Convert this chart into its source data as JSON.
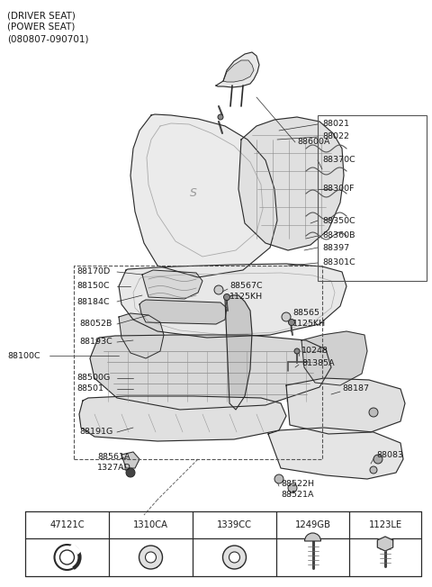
{
  "bg_color": "#ffffff",
  "line_color": "#2a2a2a",
  "title_lines": [
    "(DRIVER SEAT)",
    "(POWER SEAT)",
    "(080807-090701)"
  ],
  "table_labels": [
    "47121C",
    "1310CA",
    "1339CC",
    "1249GB",
    "1123LE"
  ],
  "fig_w": 4.8,
  "fig_h": 6.52,
  "dpi": 100
}
